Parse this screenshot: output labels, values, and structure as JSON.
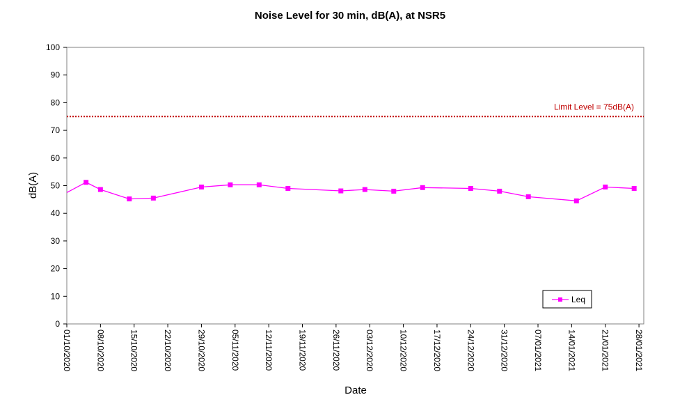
{
  "chart_data": {
    "type": "line",
    "title": "Noise Level for 30 min, dB(A), at NSR5",
    "xlabel": "Date",
    "ylabel": "dB(A)",
    "ylim": [
      0,
      100
    ],
    "yticks": [
      0,
      10,
      20,
      30,
      40,
      50,
      60,
      70,
      80,
      90,
      100
    ],
    "xlim": [
      "01/10/2020",
      "29/01/2021"
    ],
    "xticks": [
      "01/10/2020",
      "08/10/2020",
      "15/10/2020",
      "22/10/2020",
      "29/10/2020",
      "05/11/2020",
      "12/11/2020",
      "19/11/2020",
      "26/11/2020",
      "03/12/2020",
      "10/12/2020",
      "17/12/2020",
      "24/12/2020",
      "31/12/2020",
      "07/01/2021",
      "14/01/2021",
      "21/01/2021",
      "28/01/2021"
    ],
    "grid": false,
    "legend": {
      "position": "bottom-right",
      "entries": [
        "Leq"
      ]
    },
    "series": [
      {
        "name": "Leq",
        "color": "#ff00ff",
        "marker": "square",
        "points": [
          {
            "x": "30/09/2020",
            "y": 47.5
          },
          {
            "x": "05/10/2020",
            "y": 51.2
          },
          {
            "x": "08/10/2020",
            "y": 48.6
          },
          {
            "x": "14/10/2020",
            "y": 45.2
          },
          {
            "x": "19/10/2020",
            "y": 45.5
          },
          {
            "x": "29/10/2020",
            "y": 49.5
          },
          {
            "x": "04/11/2020",
            "y": 50.3
          },
          {
            "x": "10/11/2020",
            "y": 50.3
          },
          {
            "x": "16/11/2020",
            "y": 49.0
          },
          {
            "x": "27/11/2020",
            "y": 48.1
          },
          {
            "x": "02/12/2020",
            "y": 48.6
          },
          {
            "x": "08/12/2020",
            "y": 48.0
          },
          {
            "x": "14/12/2020",
            "y": 49.3
          },
          {
            "x": "24/12/2020",
            "y": 49.0
          },
          {
            "x": "30/12/2020",
            "y": 48.0
          },
          {
            "x": "05/01/2021",
            "y": 46.0
          },
          {
            "x": "15/01/2021",
            "y": 44.5
          },
          {
            "x": "21/01/2021",
            "y": 49.5
          },
          {
            "x": "27/01/2021",
            "y": 49.0
          }
        ]
      }
    ],
    "reference_lines": [
      {
        "y": 75,
        "label": "Limit Level  = 75dB(A)",
        "color": "#c00000",
        "style": "dotted"
      }
    ]
  }
}
